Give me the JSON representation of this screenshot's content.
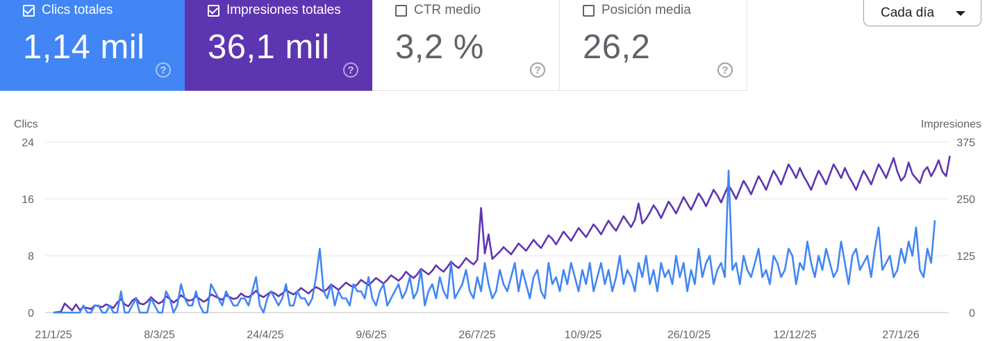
{
  "metrics": {
    "clicks": {
      "label": "Clics totales",
      "value": "1,14 mil",
      "checked": true,
      "color": "#4285f4"
    },
    "impressions": {
      "label": "Impresiones totales",
      "value": "36,1 mil",
      "checked": true,
      "color": "#5e35b1"
    },
    "ctr": {
      "label": "CTR medio",
      "value": "3,2 %",
      "checked": false
    },
    "position": {
      "label": "Posición media",
      "value": "26,2",
      "checked": false
    }
  },
  "help_glyph": "?",
  "granularity": {
    "selected": "Cada día"
  },
  "chart_data": {
    "type": "line",
    "x_ticks": [
      "21/1/25",
      "8/3/25",
      "24/4/25",
      "9/6/25",
      "26/7/25",
      "10/9/25",
      "26/10/25",
      "12/12/25",
      "27/1/26"
    ],
    "y_left": {
      "label": "Clics",
      "ticks": [
        "0",
        "8",
        "16",
        "24"
      ],
      "ylim": [
        0,
        24
      ]
    },
    "y_right": {
      "label": "Impresiones",
      "ticks": [
        "0",
        "125",
        "250",
        "375"
      ],
      "ylim": [
        0,
        375
      ]
    },
    "grid": true,
    "series": [
      {
        "name": "Clics totales",
        "axis": "left",
        "color": "#4285f4",
        "values": [
          0,
          0,
          0,
          0,
          0,
          0,
          0,
          0,
          1,
          0,
          0,
          1,
          1,
          0,
          0,
          1,
          0,
          0,
          3,
          0,
          0,
          1,
          2,
          0,
          0,
          0,
          2,
          1,
          0,
          0,
          3,
          2,
          0,
          1,
          4,
          2,
          1,
          1,
          3,
          1,
          0,
          0,
          4,
          3,
          2,
          1,
          3,
          2,
          1,
          1,
          2,
          2,
          1,
          3,
          5,
          1,
          0,
          2,
          3,
          2,
          1,
          2,
          4,
          1,
          1,
          3,
          2,
          2,
          1,
          2,
          5,
          9,
          3,
          2,
          4,
          1,
          3,
          2,
          2,
          1,
          4,
          3,
          3,
          2,
          5,
          2,
          1,
          3,
          4,
          1,
          2,
          3,
          4,
          2,
          3,
          5,
          2,
          3,
          6,
          1,
          3,
          4,
          2,
          5,
          3,
          2,
          7,
          2,
          3,
          4,
          6,
          3,
          2,
          5,
          3,
          7,
          4,
          2,
          3,
          6,
          4,
          3,
          5,
          7,
          3,
          6,
          4,
          2,
          5,
          6,
          3,
          2,
          7,
          4,
          5,
          3,
          6,
          4,
          7,
          5,
          3,
          6,
          4,
          7,
          3,
          5,
          7,
          4,
          6,
          3,
          5,
          8,
          4,
          6,
          5,
          3,
          7,
          5,
          8,
          4,
          6,
          3,
          7,
          5,
          6,
          4,
          8,
          5,
          7,
          3,
          6,
          4,
          9,
          5,
          7,
          8,
          4,
          6,
          7,
          5,
          20,
          6,
          7,
          4,
          8,
          6,
          5,
          7,
          9,
          5,
          6,
          4,
          8,
          7,
          5,
          6,
          9,
          8,
          4,
          7,
          6,
          10,
          7,
          5,
          8,
          6,
          9,
          7,
          5,
          6,
          10,
          7,
          4,
          8,
          9,
          6,
          7,
          8,
          5,
          9,
          12,
          6,
          7,
          8,
          5,
          6,
          9,
          7,
          10,
          8,
          12,
          6,
          5,
          9,
          7,
          13
        ]
      },
      {
        "name": "Impresiones totales",
        "axis": "right",
        "color": "#5e35b1",
        "values": [
          0,
          1,
          2,
          20,
          12,
          5,
          18,
          6,
          12,
          10,
          8,
          16,
          14,
          12,
          18,
          15,
          10,
          22,
          30,
          18,
          14,
          26,
          32,
          20,
          18,
          24,
          34,
          26,
          20,
          24,
          36,
          30,
          22,
          28,
          38,
          32,
          26,
          28,
          36,
          30,
          24,
          28,
          40,
          36,
          32,
          28,
          38,
          34,
          30,
          32,
          42,
          36,
          34,
          40,
          48,
          38,
          34,
          40,
          46,
          42,
          36,
          42,
          50,
          44,
          40,
          46,
          54,
          48,
          42,
          50,
          56,
          52,
          46,
          52,
          62,
          56,
          50,
          58,
          66,
          60,
          56,
          62,
          72,
          66,
          60,
          68,
          76,
          70,
          64,
          72,
          82,
          76,
          70,
          78,
          90,
          82,
          76,
          84,
          96,
          90,
          84,
          92,
          104,
          96,
          90,
          100,
          112,
          104,
          98,
          108,
          120,
          112,
          106,
          116,
          230,
          130,
          172,
          118,
          126,
          134,
          144,
          136,
          128,
          140,
          152,
          144,
          136,
          148,
          160,
          150,
          142,
          156,
          170,
          162,
          150,
          164,
          178,
          168,
          158,
          172,
          186,
          176,
          166,
          180,
          194,
          184,
          172,
          188,
          202,
          190,
          180,
          196,
          212,
          200,
          188,
          204,
          240,
          196,
          206,
          220,
          236,
          224,
          208,
          226,
          244,
          232,
          218,
          236,
          254,
          240,
          226,
          244,
          262,
          250,
          234,
          252,
          270,
          258,
          242,
          262,
          280,
          266,
          250,
          270,
          290,
          276,
          260,
          280,
          300,
          286,
          270,
          292,
          312,
          298,
          282,
          304,
          326,
          312,
          296,
          318,
          300,
          286,
          270,
          292,
          312,
          298,
          282,
          304,
          326,
          312,
          296,
          318,
          300,
          286,
          270,
          292,
          312,
          298,
          282,
          304,
          326,
          312,
          296,
          318,
          340,
          310,
          290,
          300,
          330,
          305,
          295,
          285,
          310,
          320,
          300,
          315,
          335,
          310,
          300,
          345
        ]
      }
    ]
  }
}
